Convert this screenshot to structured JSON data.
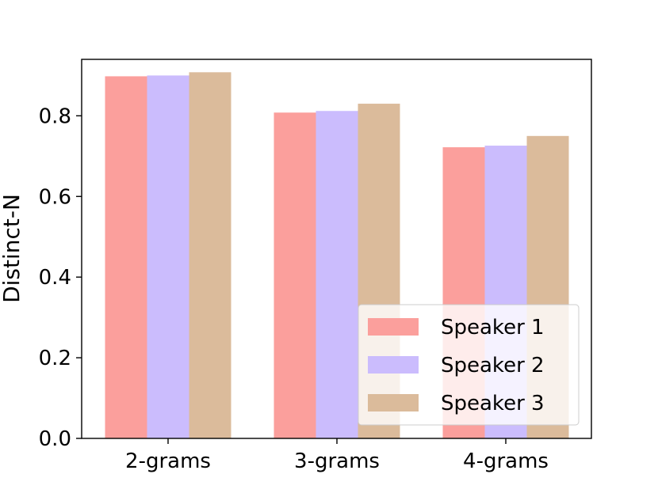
{
  "chart_data": {
    "type": "bar",
    "categories": [
      "2-grams",
      "3-grams",
      "4-grams"
    ],
    "series": [
      {
        "name": "Speaker 1",
        "color": "#fb9f9c",
        "values": [
          0.898,
          0.808,
          0.722
        ]
      },
      {
        "name": "Speaker 2",
        "color": "#cbbcfd",
        "values": [
          0.9,
          0.812,
          0.726
        ]
      },
      {
        "name": "Speaker 3",
        "color": "#dbbb9b",
        "values": [
          0.908,
          0.83,
          0.75
        ]
      }
    ],
    "ylabel": "Distinct-N",
    "xlabel": "",
    "ylim": [
      0,
      0.94
    ],
    "yticks": [
      "0.0",
      "0.2",
      "0.4",
      "0.6",
      "0.8"
    ],
    "grid": false,
    "legend": "lower-right"
  }
}
